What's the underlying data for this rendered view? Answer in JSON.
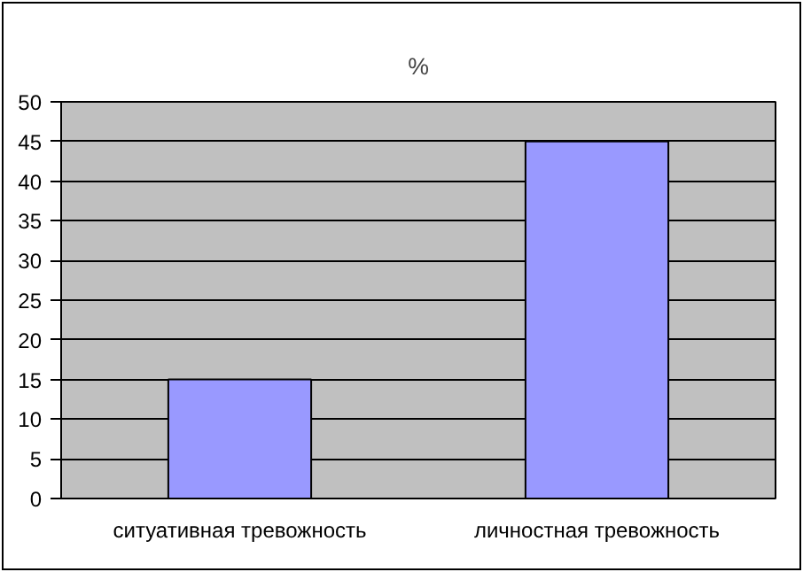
{
  "chart_data": {
    "type": "bar",
    "title": "%",
    "categories": [
      "ситуативная тревожность",
      "личностная тревожность"
    ],
    "values": [
      15,
      45
    ],
    "color": "#9999ff",
    "ylim": [
      0,
      50
    ],
    "yticks": [
      0,
      5,
      10,
      15,
      20,
      25,
      30,
      35,
      40,
      45,
      50
    ],
    "grid": "y"
  }
}
